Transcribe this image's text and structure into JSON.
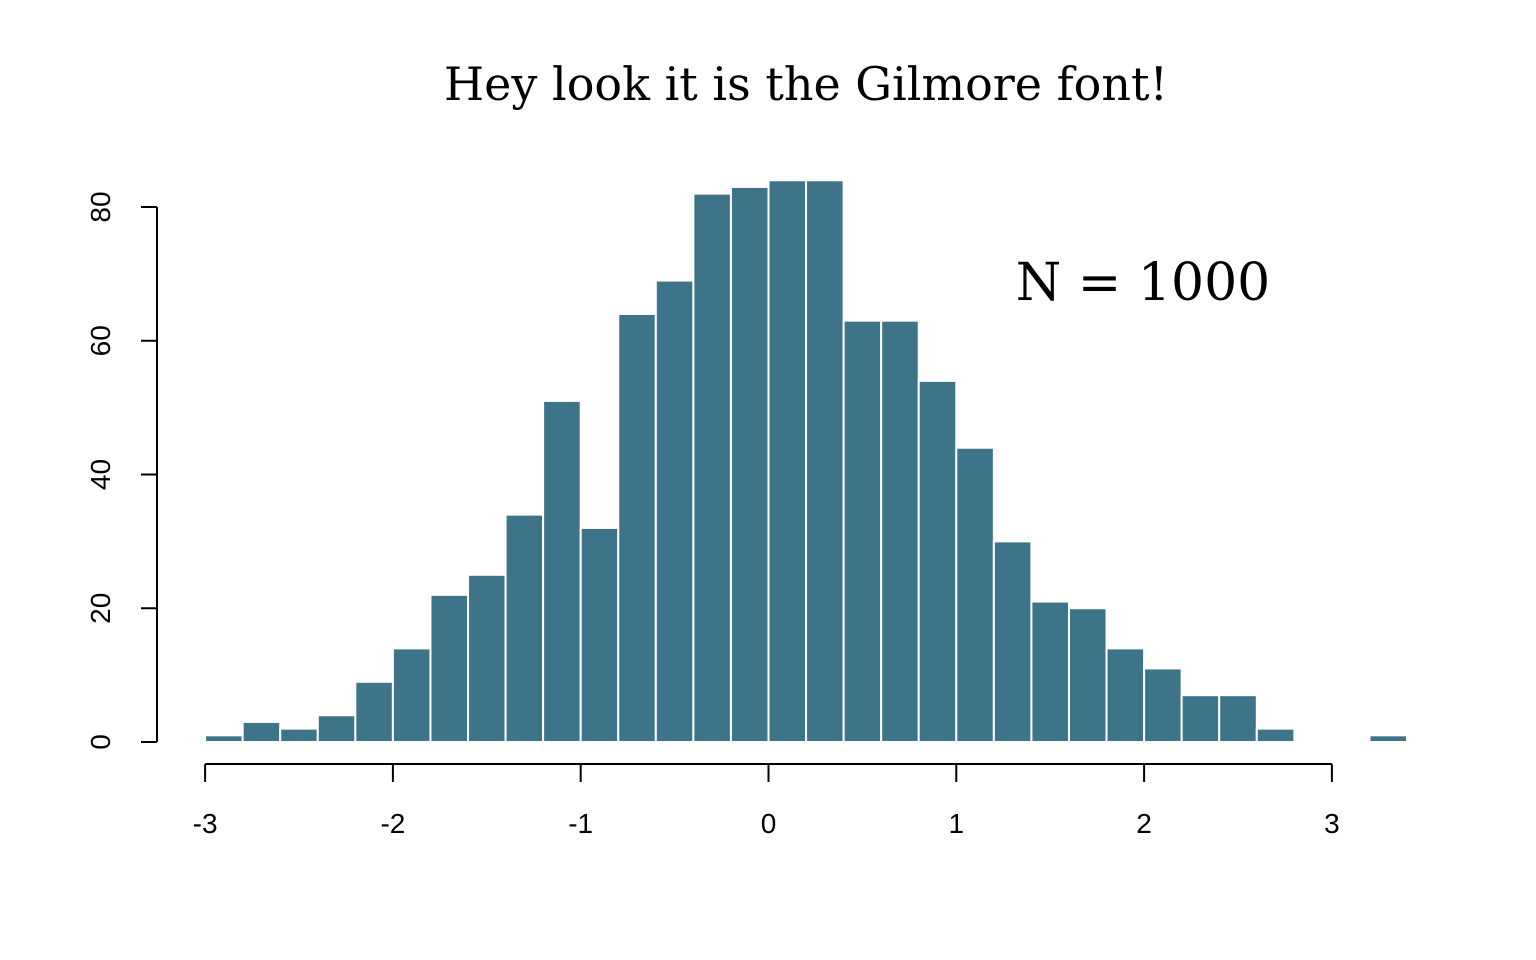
{
  "chart_data": {
    "type": "bar",
    "title": "Hey look it is the Gilmore font!",
    "annotation": "N = 1000",
    "bar_color": "#3e7489",
    "bar_border_color": "#ffffff",
    "background": "#ffffff",
    "bin_width": 0.2,
    "bins": [
      {
        "x0": -3.0,
        "x1": -2.8,
        "count": 1
      },
      {
        "x0": -2.8,
        "x1": -2.6,
        "count": 3
      },
      {
        "x0": -2.6,
        "x1": -2.4,
        "count": 2
      },
      {
        "x0": -2.4,
        "x1": -2.2,
        "count": 4
      },
      {
        "x0": -2.2,
        "x1": -2.0,
        "count": 9
      },
      {
        "x0": -2.0,
        "x1": -1.8,
        "count": 14
      },
      {
        "x0": -1.8,
        "x1": -1.6,
        "count": 22
      },
      {
        "x0": -1.6,
        "x1": -1.4,
        "count": 25
      },
      {
        "x0": -1.4,
        "x1": -1.2,
        "count": 34
      },
      {
        "x0": -1.2,
        "x1": -1.0,
        "count": 51
      },
      {
        "x0": -1.0,
        "x1": -0.8,
        "count": 32
      },
      {
        "x0": -0.8,
        "x1": -0.6,
        "count": 64
      },
      {
        "x0": -0.6,
        "x1": -0.4,
        "count": 69
      },
      {
        "x0": -0.4,
        "x1": -0.2,
        "count": 82
      },
      {
        "x0": -0.2,
        "x1": 0.0,
        "count": 83
      },
      {
        "x0": 0.0,
        "x1": 0.2,
        "count": 84
      },
      {
        "x0": 0.2,
        "x1": 0.4,
        "count": 84
      },
      {
        "x0": 0.4,
        "x1": 0.6,
        "count": 63
      },
      {
        "x0": 0.6,
        "x1": 0.8,
        "count": 63
      },
      {
        "x0": 0.8,
        "x1": 1.0,
        "count": 54
      },
      {
        "x0": 1.0,
        "x1": 1.2,
        "count": 44
      },
      {
        "x0": 1.2,
        "x1": 1.4,
        "count": 30
      },
      {
        "x0": 1.4,
        "x1": 1.6,
        "count": 21
      },
      {
        "x0": 1.6,
        "x1": 1.8,
        "count": 20
      },
      {
        "x0": 1.8,
        "x1": 2.0,
        "count": 14
      },
      {
        "x0": 2.0,
        "x1": 2.2,
        "count": 11
      },
      {
        "x0": 2.2,
        "x1": 2.4,
        "count": 7
      },
      {
        "x0": 2.4,
        "x1": 2.6,
        "count": 7
      },
      {
        "x0": 2.6,
        "x1": 2.8,
        "count": 2
      },
      {
        "x0": 2.8,
        "x1": 3.0,
        "count": 0
      },
      {
        "x0": 3.0,
        "x1": 3.2,
        "count": 0
      },
      {
        "x0": 3.2,
        "x1": 3.4,
        "count": 1
      }
    ],
    "xlabel": "",
    "ylabel": "",
    "xlim": [
      -3,
      3
    ],
    "ylim": [
      0,
      80
    ],
    "x_ticks": [
      -3,
      -2,
      -1,
      0,
      1,
      2,
      3
    ],
    "x_tick_labels": [
      "-3",
      "-2",
      "-1",
      "0",
      "1",
      "2",
      "3"
    ],
    "y_ticks": [
      0,
      20,
      40,
      60,
      80
    ],
    "y_tick_labels": [
      "0",
      "20",
      "40",
      "60",
      "80"
    ],
    "grid": false,
    "legend": "none"
  }
}
